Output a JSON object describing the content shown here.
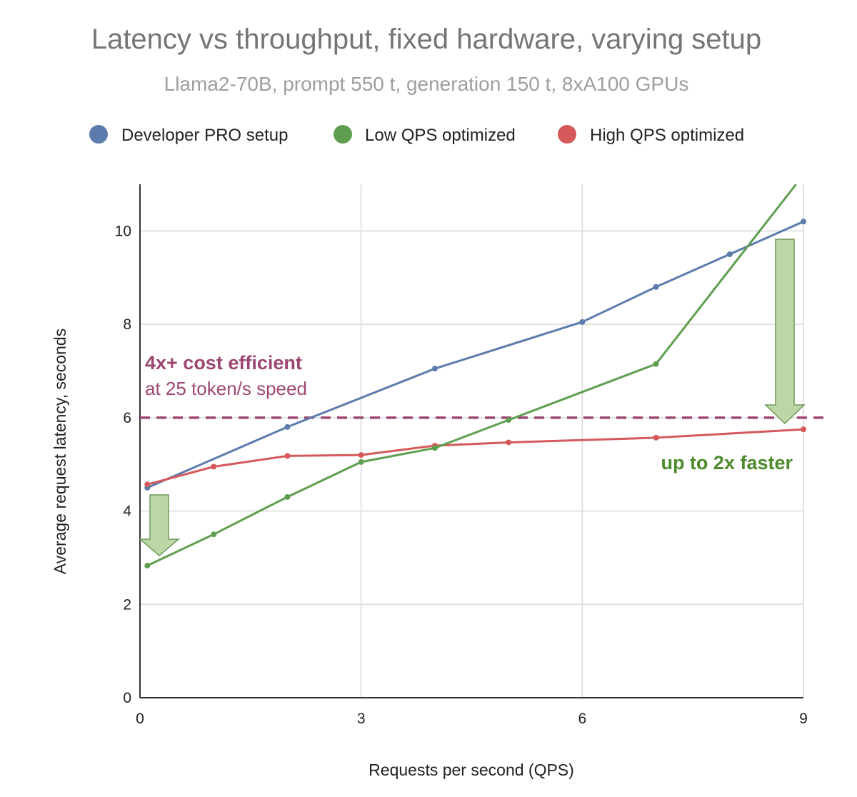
{
  "chart_data": {
    "type": "line",
    "title": "Latency vs throughput, fixed hardware, varying setup",
    "subtitle": "Llama2-70B, prompt 550 t, generation 150 t, 8xA100 GPUs",
    "xlabel": "Requests per second (QPS)",
    "ylabel": "Average request latency, seconds",
    "xlim": [
      0,
      9
    ],
    "ylim": [
      0,
      11
    ],
    "x_ticks": [
      0,
      3,
      6,
      9
    ],
    "y_ticks": [
      0,
      2,
      4,
      6,
      8,
      10
    ],
    "grid": true,
    "legend_position": "top",
    "series": [
      {
        "name": "Developer PRO setup",
        "color": "#5b7cac",
        "points": [
          [
            0.1,
            4.5
          ],
          [
            2,
            5.8
          ],
          [
            4,
            7.05
          ],
          [
            6,
            8.05
          ],
          [
            7,
            8.8
          ],
          [
            8,
            9.5
          ],
          [
            9,
            10.2
          ]
        ]
      },
      {
        "name": "Low QPS optimized",
        "color": "#5e9f4f",
        "points": [
          [
            0.1,
            2.83
          ],
          [
            1,
            3.5
          ],
          [
            2,
            4.3
          ],
          [
            3,
            5.05
          ],
          [
            4,
            5.35
          ],
          [
            5,
            5.95
          ],
          [
            7,
            7.15
          ],
          [
            8.9,
            11
          ]
        ]
      },
      {
        "name": "High QPS optimized",
        "color": "#d5595a",
        "points": [
          [
            0.1,
            4.57
          ],
          [
            1,
            4.95
          ],
          [
            2,
            5.18
          ],
          [
            3,
            5.2
          ],
          [
            4,
            5.4
          ],
          [
            5,
            5.47
          ],
          [
            7,
            5.57
          ],
          [
            9,
            5.75
          ]
        ]
      }
    ],
    "reference_line": {
      "y": 6,
      "color": "#9c4672"
    },
    "annotations": {
      "cost_bold": "4x+ cost efficient",
      "cost_normal": "at 25 token/s speed",
      "faster": "up to 2x faster",
      "cost_color": "#9c4672",
      "faster_color": "#4e8a2d",
      "arrow_fill": "#bcd7a6",
      "arrow_stroke": "#6f9a55"
    }
  }
}
